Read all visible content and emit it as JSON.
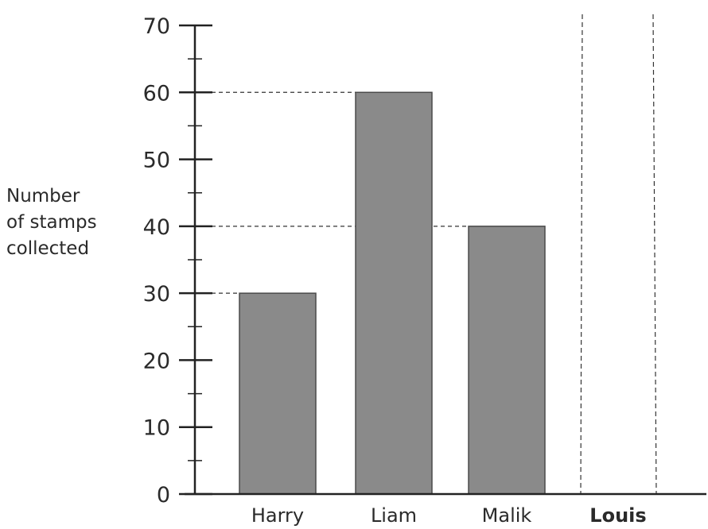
{
  "chart_data": {
    "type": "bar",
    "categories": [
      "Harry",
      "Liam",
      "Malik",
      "Louis"
    ],
    "values": [
      30,
      60,
      40,
      null
    ],
    "ylabel_lines": [
      "Number",
      "of stamps",
      "collected"
    ],
    "xlabel": "",
    "ylim": [
      0,
      70
    ],
    "major_ticks": [
      0,
      10,
      20,
      30,
      40,
      50,
      60,
      70
    ],
    "minor_tick_step": 5,
    "highlighted_category": "Louis",
    "guide_lines": [
      30,
      40,
      60
    ],
    "grid": false,
    "bar_color": "#8a8a8a",
    "guide_color": "#333333"
  }
}
